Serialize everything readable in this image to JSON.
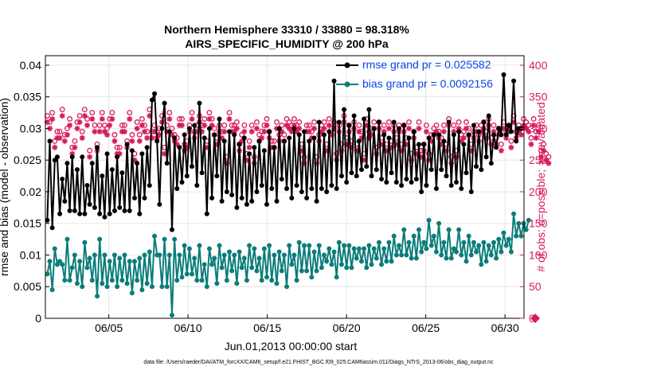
{
  "chart_data": {
    "type": "line",
    "title": "Northern Hemisphere 33310 / 33880 = 98.318%",
    "subtitle": "AIRS_SPECIFIC_HUMIDITY @ 200 hPa",
    "xlabel": "Jun.01,2013 00:00:00 start",
    "ylabel": "rmse and bias (model - observation)",
    "y2label": "# of obs: o=possible; ∗=evaluated",
    "footer": "data file: /Users/raeder/DAI/ATM_forcXX/CAM6_setup/f.e21.FHIST_BGC.f09_025.CAM6assim.011/Diags_NTrS_2013-06/obs_diag_output.nc",
    "xlim": [
      1,
      31.2
    ],
    "ylim": [
      0,
      0.0415
    ],
    "y2lim": [
      0,
      415
    ],
    "x_tick_values": [
      5,
      10,
      15,
      20,
      25,
      30
    ],
    "x_tick_labels": [
      "06/05",
      "06/10",
      "06/15",
      "06/20",
      "06/25",
      "06/30"
    ],
    "y_tick_labels": [
      "0",
      "0.005",
      "0.01",
      "0.015",
      "0.02",
      "0.025",
      "0.03",
      "0.035",
      "0.04"
    ],
    "y_tick_values": [
      0,
      0.005,
      0.01,
      0.015,
      0.02,
      0.025,
      0.03,
      0.035,
      0.04
    ],
    "y2_tick_labels": [
      "0",
      "50",
      "100",
      "150",
      "200",
      "250",
      "300",
      "350",
      "400"
    ],
    "y2_tick_values": [
      0,
      50,
      100,
      150,
      200,
      250,
      300,
      350,
      400
    ],
    "grid": true,
    "legend_position": "top-right",
    "x_step_days": 0.25,
    "series": [
      {
        "name": "rmse grand pr = 0.025582",
        "color": "#000000",
        "marker": "filled-circle",
        "axis": "left",
        "values": [
          0.0155,
          0.028,
          0.0143,
          0.025,
          0.0255,
          0.0165,
          0.022,
          0.0185,
          0.0245,
          0.017,
          0.0255,
          0.017,
          0.0235,
          0.0165,
          0.0255,
          0.0165,
          0.021,
          0.018,
          0.0245,
          0.0175,
          0.027,
          0.0165,
          0.0225,
          0.016,
          0.026,
          0.0165,
          0.0235,
          0.017,
          0.0255,
          0.0175,
          0.023,
          0.017,
          0.0275,
          0.017,
          0.0265,
          0.019,
          0.0245,
          0.0165,
          0.026,
          0.019,
          0.027,
          0.021,
          0.0345,
          0.0355,
          0.028,
          0.018,
          0.03,
          0.034,
          0.0245,
          0.0295,
          0.014,
          0.0285,
          0.0205,
          0.027,
          0.0215,
          0.029,
          0.0225,
          0.03,
          0.024,
          0.0305,
          0.021,
          0.034,
          0.023,
          0.0285,
          0.0165,
          0.03,
          0.019,
          0.029,
          0.0225,
          0.0315,
          0.0185,
          0.028,
          0.02,
          0.0295,
          0.0195,
          0.029,
          0.0175,
          0.0275,
          0.019,
          0.0285,
          0.018,
          0.026,
          0.0185,
          0.027,
          0.02,
          0.028,
          0.021,
          0.0265,
          0.018,
          0.0295,
          0.0205,
          0.027,
          0.0185,
          0.03,
          0.022,
          0.028,
          0.0205,
          0.0285,
          0.019,
          0.03,
          0.021,
          0.029,
          0.02,
          0.0295,
          0.019,
          0.028,
          0.0205,
          0.0285,
          0.0185,
          0.031,
          0.0205,
          0.029,
          0.02,
          0.0295,
          0.021,
          0.0375,
          0.0205,
          0.031,
          0.0225,
          0.033,
          0.0215,
          0.0305,
          0.023,
          0.032,
          0.0225,
          0.028,
          0.0235,
          0.0315,
          0.024,
          0.033,
          0.0225,
          0.03,
          0.0235,
          0.031,
          0.022,
          0.029,
          0.0215,
          0.0285,
          0.023,
          0.031,
          0.0215,
          0.03,
          0.021,
          0.0305,
          0.022,
          0.0285,
          0.0215,
          0.0295,
          0.022,
          0.0275,
          0.02,
          0.0275,
          0.021,
          0.0285,
          0.0235,
          0.029,
          0.0205,
          0.029,
          0.0235,
          0.028,
          0.0225,
          0.031,
          0.021,
          0.029,
          0.0215,
          0.0295,
          0.0205,
          0.0275,
          0.023,
          0.029,
          0.02,
          0.0305,
          0.024,
          0.0295,
          0.0235,
          0.031,
          0.0255,
          0.032,
          0.0245,
          0.029,
          0.027,
          0.03,
          0.029,
          0.0385,
          0.029,
          0.0305,
          0.0295,
          0.0375,
          0.028,
          0.03,
          0.03
        ],
        "values_note": "values listed at the plotted time resolution"
      },
      {
        "name": "bias grand pr = 0.0092156",
        "color": "#0a7d7a",
        "marker": "filled-circle",
        "axis": "left",
        "values": [
          0.007,
          0.009,
          0.0045,
          0.011,
          0.0085,
          0.009,
          0.0085,
          0.006,
          0.0125,
          0.006,
          0.008,
          0.01,
          0.0055,
          0.009,
          0.005,
          0.012,
          0.008,
          0.0095,
          0.006,
          0.01,
          0.0035,
          0.0125,
          0.0055,
          0.01,
          0.005,
          0.009,
          0.006,
          0.01,
          0.005,
          0.0095,
          0.006,
          0.01,
          0.0055,
          0.009,
          0.004,
          0.009,
          0.006,
          0.0095,
          0.0045,
          0.01,
          0.0055,
          0.0105,
          0.005,
          0.013,
          0.01,
          0.01,
          0.005,
          0.0125,
          0.005,
          0.01,
          0.0005,
          0.0125,
          0.006,
          0.01,
          0.0065,
          0.0115,
          0.007,
          0.011,
          0.007,
          0.0095,
          0.006,
          0.0115,
          0.006,
          0.0085,
          0.005,
          0.011,
          0.0085,
          0.0095,
          0.0055,
          0.0115,
          0.008,
          0.01,
          0.006,
          0.0105,
          0.0075,
          0.01,
          0.0055,
          0.0105,
          0.008,
          0.0095,
          0.006,
          0.0115,
          0.008,
          0.011,
          0.0075,
          0.0095,
          0.006,
          0.011,
          0.0065,
          0.0115,
          0.006,
          0.01,
          0.0055,
          0.0105,
          0.0075,
          0.01,
          0.005,
          0.0115,
          0.0085,
          0.01,
          0.006,
          0.012,
          0.0075,
          0.0115,
          0.0075,
          0.0115,
          0.0065,
          0.0105,
          0.0075,
          0.0115,
          0.008,
          0.01,
          0.009,
          0.011,
          0.0085,
          0.0105,
          0.0065,
          0.012,
          0.0085,
          0.0115,
          0.008,
          0.0115,
          0.008,
          0.011,
          0.0095,
          0.011,
          0.009,
          0.011,
          0.008,
          0.0115,
          0.0085,
          0.011,
          0.0095,
          0.012,
          0.0085,
          0.011,
          0.009,
          0.012,
          0.009,
          0.013,
          0.01,
          0.0115,
          0.01,
          0.014,
          0.01,
          0.012,
          0.0095,
          0.013,
          0.0095,
          0.014,
          0.0105,
          0.012,
          0.011,
          0.0155,
          0.0115,
          0.013,
          0.0105,
          0.015,
          0.01,
          0.012,
          0.0095,
          0.014,
          0.0095,
          0.011,
          0.0105,
          0.014,
          0.01,
          0.012,
          0.009,
          0.013,
          0.01,
          0.012,
          0.0105,
          0.0115,
          0.0085,
          0.012,
          0.009,
          0.0115,
          0.01,
          0.012,
          0.0095,
          0.0125,
          0.0105,
          0.0135,
          0.0115,
          0.0125,
          0.0105,
          0.0165,
          0.013,
          0.015,
          0.013,
          0.015,
          0.014,
          0.0155
        ]
      },
      {
        "name": "# of obs possible",
        "color": "#d81b60",
        "marker": "open-circle",
        "axis": "right",
        "values": [
          315,
          305,
          320,
          275,
          290,
          290,
          325,
          285,
          295,
          310,
          265,
          275,
          305,
          315,
          290,
          325,
          310,
          260,
          320,
          300,
          270,
          300,
          320,
          300,
          295,
          310,
          320,
          285,
          265,
          265,
          300,
          300,
          275,
          320,
          285,
          255,
          305,
          285,
          310,
          300,
          290,
          325,
          290,
          300,
          290,
          295,
          315,
          265,
          300,
          320,
          295,
          285,
          280,
          310,
          310,
          270,
          275,
          300,
          320,
          290,
          300,
          315,
          300,
          310,
          275,
          320,
          310,
          295,
          280,
          300,
          290,
          300,
          250,
          320,
          300,
          300,
          305,
          270,
          285,
          300,
          255,
          275,
          300,
          250,
          305,
          285,
          290,
          300,
          310,
          290,
          275,
          275,
          305,
          285,
          300,
          285,
          310,
          305,
          300,
          310,
          300,
          305,
          270,
          250,
          300,
          300,
          290,
          305,
          250,
          285,
          300,
          305,
          270,
          310,
          295,
          305,
          255,
          300,
          270,
          315,
          280,
          300,
          275,
          305,
          270,
          300,
          290,
          255,
          310,
          290,
          295,
          305,
          265,
          305,
          280,
          300,
          270,
          305,
          275,
          300,
          280,
          300,
          270,
          300,
          280,
          305,
          255,
          290,
          265,
          305,
          260,
          270,
          300,
          255,
          285,
          295,
          300,
          290,
          280,
          300,
          270,
          310,
          250,
          300,
          260,
          305,
          285,
          290,
          305,
          295,
          270,
          290,
          300,
          285,
          300,
          305,
          290,
          310,
          280,
          300,
          280,
          295,
          270,
          305,
          290,
          300,
          275,
          315,
          290,
          300,
          295,
          310,
          305,
          300,
          280,
          310,
          290,
          300,
          260,
          270,
          255,
          250
        ],
        "values_note": "approximate"
      },
      {
        "name": "# of obs evaluated",
        "color": "#d81b60",
        "marker": "asterisk",
        "axis": "right",
        "values": [
          310,
          300,
          315,
          270,
          285,
          285,
          320,
          280,
          290,
          305,
          260,
          270,
          300,
          310,
          285,
          320,
          305,
          255,
          315,
          295,
          265,
          295,
          315,
          295,
          290,
          305,
          315,
          280,
          260,
          260,
          295,
          295,
          270,
          315,
          280,
          250,
          300,
          280,
          305,
          295,
          285,
          320,
          285,
          295,
          285,
          290,
          310,
          260,
          295,
          315,
          290,
          280,
          275,
          305,
          305,
          265,
          270,
          295,
          315,
          285,
          295,
          310,
          295,
          305,
          270,
          315,
          305,
          290,
          275,
          295,
          285,
          295,
          245,
          315,
          295,
          295,
          300,
          265,
          280,
          295,
          250,
          270,
          295,
          245,
          300,
          280,
          285,
          295,
          305,
          285,
          270,
          270,
          300,
          280,
          295,
          280,
          305,
          300,
          295,
          305,
          295,
          300,
          265,
          245,
          295,
          295,
          285,
          300,
          245,
          280,
          295,
          300,
          265,
          305,
          290,
          300,
          250,
          295,
          265,
          310,
          275,
          295,
          270,
          300,
          265,
          295,
          285,
          250,
          305,
          285,
          290,
          300,
          260,
          300,
          275,
          295,
          265,
          300,
          270,
          295,
          275,
          295,
          265,
          295,
          275,
          300,
          250,
          285,
          260,
          300,
          255,
          265,
          295,
          250,
          280,
          290,
          295,
          285,
          275,
          295,
          265,
          305,
          245,
          295,
          255,
          300,
          280,
          285,
          300,
          290,
          265,
          285,
          295,
          280,
          295,
          300,
          285,
          305,
          275,
          295,
          275,
          290,
          265,
          300,
          285,
          295,
          270,
          310,
          285,
          295,
          290,
          305,
          300,
          295,
          275,
          305,
          285,
          295,
          255,
          265,
          250,
          245
        ]
      }
    ],
    "legend": [
      "rmse grand pr = 0.025582",
      "bias grand pr = 0.0092156"
    ]
  },
  "colors": {
    "rmse": "#000000",
    "bias": "#0a7d7a",
    "obs": "#d81b60",
    "legend_text": "#0b45e6",
    "grid": "#e6e6e6"
  }
}
